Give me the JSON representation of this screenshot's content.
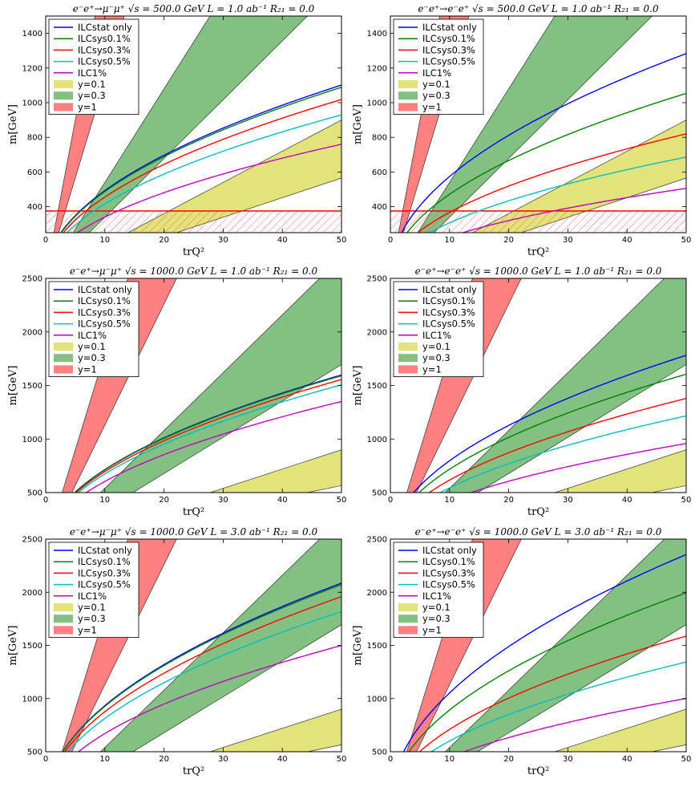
{
  "colors": {
    "stat": "#0000ff",
    "sys01": "#008000",
    "sys03": "#ff0000",
    "sys05": "#00bfbf",
    "one": "#bf00bf",
    "band01": "#d4d435",
    "band03": "#3fa03f",
    "band1": "#ff3c3c",
    "hatch": "#ff5050",
    "hline": "#ff0000"
  },
  "chart_data": [
    {
      "type": "line",
      "title": "e⁻e⁺→μ⁻μ⁺  √s = 500.0 GeV  L = 1.0 ab⁻¹  R₂₁ = 0.0",
      "xlabel": "trQ²",
      "ylabel": "m[GeV]",
      "xlim": [
        0,
        50
      ],
      "ylim": [
        250,
        1500
      ],
      "xticks": [
        0,
        10,
        20,
        30,
        40,
        50
      ],
      "yticks": [
        400,
        600,
        800,
        1000,
        1200,
        1400
      ],
      "legend_location": "top-left",
      "legend": [
        "ILCstat only",
        "ILCsys0.1%",
        "ILCsys0.3%",
        "ILCsys0.5%",
        "ILC1%",
        "y=0.1",
        "y=0.3",
        "y=1"
      ],
      "series": [
        {
          "name": "ILCstat only",
          "color_key": "stat",
          "k": 155.8
        },
        {
          "name": "ILCsys0.1%",
          "color_key": "sys01",
          "k": 154.0
        },
        {
          "name": "ILCsys0.3%",
          "color_key": "sys03",
          "k": 144.0
        },
        {
          "name": "ILCsys0.5%",
          "color_key": "sys05",
          "k": 131.5
        },
        {
          "name": "ILC1%",
          "color_key": "one",
          "k": 107.5
        }
      ],
      "bands": [
        {
          "name": "y=0.1",
          "color_key": "band01",
          "slope_lo": 11.3,
          "slope_hi": 18.0
        },
        {
          "name": "y=0.3",
          "color_key": "band03",
          "slope_lo": 33.9,
          "slope_hi": 54.0
        },
        {
          "name": "y=1",
          "color_key": "band1",
          "slope_lo": 113.0,
          "slope_hi": 180.0
        }
      ],
      "excluded_mass": 375
    },
    {
      "type": "line",
      "title": "e⁻e⁺→e⁻e⁺  √s = 500.0 GeV  L = 1.0 ab⁻¹  R₂₁ = 0.0",
      "xlabel": "trQ²",
      "ylabel": "m[GeV]",
      "xlim": [
        0,
        50
      ],
      "ylim": [
        250,
        1500
      ],
      "xticks": [
        0,
        10,
        20,
        30,
        40,
        50
      ],
      "yticks": [
        400,
        600,
        800,
        1000,
        1200,
        1400
      ],
      "legend_location": "top-left",
      "legend": [
        "ILCstat only",
        "ILCsys0.1%",
        "ILCsys0.3%",
        "ILCsys0.5%",
        "ILC1%",
        "y=0.1",
        "y=0.3",
        "y=1"
      ],
      "series": [
        {
          "name": "ILCstat only",
          "color_key": "stat",
          "k": 181.5
        },
        {
          "name": "ILCsys0.1%",
          "color_key": "sys01",
          "k": 149.0
        },
        {
          "name": "ILCsys0.3%",
          "color_key": "sys03",
          "k": 116.0
        },
        {
          "name": "ILCsys0.5%",
          "color_key": "sys05",
          "k": 97.0
        },
        {
          "name": "ILC1%",
          "color_key": "one",
          "k": 71.5
        }
      ],
      "bands": [
        {
          "name": "y=0.1",
          "color_key": "band01",
          "slope_lo": 11.3,
          "slope_hi": 18.0
        },
        {
          "name": "y=0.3",
          "color_key": "band03",
          "slope_lo": 33.9,
          "slope_hi": 54.0
        },
        {
          "name": "y=1",
          "color_key": "band1",
          "slope_lo": 113.0,
          "slope_hi": 180.0
        }
      ],
      "excluded_mass": 375
    },
    {
      "type": "line",
      "title": "e⁻e⁺→μ⁻μ⁺  √s = 1000.0 GeV  L = 1.0 ab⁻¹  R₂₁ = 0.0",
      "xlabel": "trQ²",
      "ylabel": "m[GeV]",
      "xlim": [
        0,
        50
      ],
      "ylim": [
        500,
        2500
      ],
      "xticks": [
        0,
        10,
        20,
        30,
        40,
        50
      ],
      "yticks": [
        500,
        1000,
        1500,
        2000,
        2500
      ],
      "legend_location": "top-left",
      "legend": [
        "ILCstat only",
        "ILCsys0.1%",
        "ILCsys0.3%",
        "ILCsys0.5%",
        "ILC1%",
        "y=0.1",
        "y=0.3",
        "y=1"
      ],
      "series": [
        {
          "name": "ILCstat only",
          "color_key": "stat",
          "k": 226.0
        },
        {
          "name": "ILCsys0.1%",
          "color_key": "sys01",
          "k": 225.0
        },
        {
          "name": "ILCsys0.3%",
          "color_key": "sys03",
          "k": 220.0
        },
        {
          "name": "ILCsys0.5%",
          "color_key": "sys05",
          "k": 213.0
        },
        {
          "name": "ILC1%",
          "color_key": "one",
          "k": 191.0
        }
      ],
      "bands": [
        {
          "name": "y=0.1",
          "color_key": "band01",
          "slope_lo": 11.3,
          "slope_hi": 18.0
        },
        {
          "name": "y=0.3",
          "color_key": "band03",
          "slope_lo": 33.9,
          "slope_hi": 54.0
        },
        {
          "name": "y=1",
          "color_key": "band1",
          "slope_lo": 113.0,
          "slope_hi": 180.0
        }
      ],
      "excluded_mass": null
    },
    {
      "type": "line",
      "title": "e⁻e⁺→e⁻e⁺  √s = 1000.0 GeV  L = 1.0 ab⁻¹  R₂₁ = 0.0",
      "xlabel": "trQ²",
      "ylabel": "m[GeV]",
      "xlim": [
        0,
        50
      ],
      "ylim": [
        500,
        2500
      ],
      "xticks": [
        0,
        10,
        20,
        30,
        40,
        50
      ],
      "yticks": [
        500,
        1000,
        1500,
        2000,
        2500
      ],
      "legend_location": "top-left",
      "legend": [
        "ILCstat only",
        "ILCsys0.1%",
        "ILCsys0.3%",
        "ILCsys0.5%",
        "ILC1%",
        "y=0.1",
        "y=0.3",
        "y=1"
      ],
      "series": [
        {
          "name": "ILCstat only",
          "color_key": "stat",
          "k": 252.0
        },
        {
          "name": "ILCsys0.1%",
          "color_key": "sys01",
          "k": 227.0
        },
        {
          "name": "ILCsys0.3%",
          "color_key": "sys03",
          "k": 195.0
        },
        {
          "name": "ILCsys0.5%",
          "color_key": "sys05",
          "k": 172.0
        },
        {
          "name": "ILC1%",
          "color_key": "one",
          "k": 135.5
        }
      ],
      "bands": [
        {
          "name": "y=0.1",
          "color_key": "band01",
          "slope_lo": 11.3,
          "slope_hi": 18.0
        },
        {
          "name": "y=0.3",
          "color_key": "band03",
          "slope_lo": 33.9,
          "slope_hi": 54.0
        },
        {
          "name": "y=1",
          "color_key": "band1",
          "slope_lo": 113.0,
          "slope_hi": 180.0
        }
      ],
      "excluded_mass": null
    },
    {
      "type": "line",
      "title": "e⁻e⁺→μ⁻μ⁺  √s = 1000.0 GeV  L = 3.0 ab⁻¹  R₂₁ = 0.0",
      "xlabel": "trQ²",
      "ylabel": "m[GeV]",
      "xlim": [
        0,
        50
      ],
      "ylim": [
        500,
        2500
      ],
      "xticks": [
        0,
        10,
        20,
        30,
        40,
        50
      ],
      "yticks": [
        500,
        1000,
        1500,
        2000,
        2500
      ],
      "legend_location": "top-left",
      "legend": [
        "ILCstat only",
        "ILCsys0.1%",
        "ILCsys0.3%",
        "ILCsys0.5%",
        "ILC1%",
        "y=0.1",
        "y=0.3",
        "y=1"
      ],
      "series": [
        {
          "name": "ILCstat only",
          "color_key": "stat",
          "k": 295.0
        },
        {
          "name": "ILCsys0.1%",
          "color_key": "sys01",
          "k": 293.0
        },
        {
          "name": "ILCsys0.3%",
          "color_key": "sys03",
          "k": 277.0
        },
        {
          "name": "ILCsys0.5%",
          "color_key": "sys05",
          "k": 257.0
        },
        {
          "name": "ILC1%",
          "color_key": "one",
          "k": 212.0
        }
      ],
      "bands": [
        {
          "name": "y=0.1",
          "color_key": "band01",
          "slope_lo": 11.3,
          "slope_hi": 18.0
        },
        {
          "name": "y=0.3",
          "color_key": "band03",
          "slope_lo": 33.9,
          "slope_hi": 54.0
        },
        {
          "name": "y=1",
          "color_key": "band1",
          "slope_lo": 113.0,
          "slope_hi": 180.0
        }
      ],
      "excluded_mass": null
    },
    {
      "type": "line",
      "title": "e⁻e⁺→e⁻e⁺  √s = 1000.0 GeV  L = 3.0 ab⁻¹  R₂₁ = 0.0",
      "xlabel": "trQ²",
      "ylabel": "m[GeV]",
      "xlim": [
        0,
        50
      ],
      "ylim": [
        500,
        2500
      ],
      "xticks": [
        0,
        10,
        20,
        30,
        40,
        50
      ],
      "yticks": [
        500,
        1000,
        1500,
        2000,
        2500
      ],
      "legend_location": "top-left",
      "legend": [
        "ILCstat only",
        "ILCsys0.1%",
        "ILCsys0.3%",
        "ILCsys0.5%",
        "ILC1%",
        "y=0.1",
        "y=0.3",
        "y=1"
      ],
      "series": [
        {
          "name": "ILCstat only",
          "color_key": "stat",
          "k": 333.0
        },
        {
          "name": "ILCsys0.1%",
          "color_key": "sys01",
          "k": 282.0
        },
        {
          "name": "ILCsys0.3%",
          "color_key": "sys03",
          "k": 224.5
        },
        {
          "name": "ILCsys0.5%",
          "color_key": "sys05",
          "k": 190.0
        },
        {
          "name": "ILC1%",
          "color_key": "one",
          "k": 141.5
        }
      ],
      "bands": [
        {
          "name": "y=0.1",
          "color_key": "band01",
          "slope_lo": 11.3,
          "slope_hi": 18.0
        },
        {
          "name": "y=0.3",
          "color_key": "band03",
          "slope_lo": 33.9,
          "slope_hi": 54.0
        },
        {
          "name": "y=1",
          "color_key": "band1",
          "slope_lo": 113.0,
          "slope_hi": 180.0
        }
      ],
      "excluded_mass": null
    }
  ]
}
